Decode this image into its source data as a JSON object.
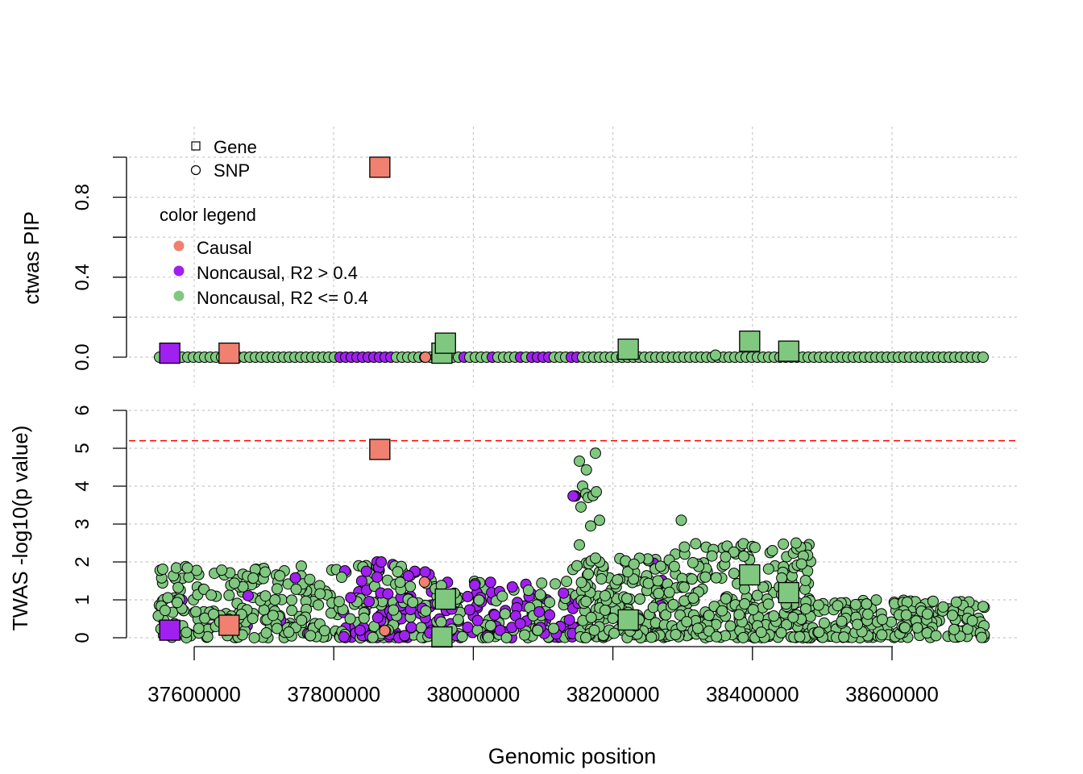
{
  "chart_data": [
    {
      "type": "scatter",
      "panel": "top",
      "ylabel": "ctwas PIP",
      "ylim": [
        0,
        1
      ],
      "yticks": [
        0.0,
        0.4,
        0.8
      ],
      "ytick_labels": [
        "0.0",
        "0.4",
        "0.8"
      ],
      "xlim": [
        37550000,
        38730000
      ],
      "grid": true,
      "shape_legend": {
        "gene": "Gene",
        "snp": "SNP"
      },
      "color_legend": {
        "title": "color legend",
        "items": [
          {
            "label": "Causal",
            "color": "#F08070"
          },
          {
            "label": "Noncausal, R2 > 0.4",
            "color": "#A020F0"
          },
          {
            "label": "Noncausal, R2 <= 0.4",
            "color": "#80C880"
          }
        ]
      },
      "genes": [
        {
          "x": 37866000,
          "y": 0.95,
          "class": "causal"
        },
        {
          "x": 37565000,
          "y": 0.02,
          "class": "high"
        },
        {
          "x": 37650000,
          "y": 0.02,
          "class": "causal"
        },
        {
          "x": 37955000,
          "y": 0.02,
          "class": "low"
        },
        {
          "x": 37960000,
          "y": 0.07,
          "class": "low"
        },
        {
          "x": 38222000,
          "y": 0.04,
          "class": "low"
        },
        {
          "x": 38396000,
          "y": 0.08,
          "class": "low"
        },
        {
          "x": 38452000,
          "y": 0.03,
          "class": "low"
        }
      ]
    },
    {
      "type": "scatter",
      "panel": "bottom",
      "ylabel": "TWAS -log10(p value)",
      "xlabel": "Genomic position",
      "ylim": [
        0,
        6
      ],
      "yticks": [
        0,
        1,
        2,
        3,
        4,
        5,
        6
      ],
      "ytick_labels": [
        "0",
        "1",
        "2",
        "3",
        "4",
        "5",
        "6"
      ],
      "xticks": [
        37600000,
        37800000,
        38000000,
        38200000,
        38400000,
        38600000
      ],
      "xtick_labels": [
        "37600000",
        "37800000",
        "38000000",
        "38200000",
        "38400000",
        "38600000"
      ],
      "xlim": [
        37550000,
        38730000
      ],
      "threshold": 5.2,
      "threshold_color": "#FF0000",
      "grid": true,
      "genes": [
        {
          "x": 37866000,
          "y": 4.97,
          "class": "causal"
        },
        {
          "x": 37565000,
          "y": 0.2,
          "class": "high"
        },
        {
          "x": 37650000,
          "y": 0.33,
          "class": "causal"
        },
        {
          "x": 37955000,
          "y": 0.02,
          "class": "low"
        },
        {
          "x": 37960000,
          "y": 1.02,
          "class": "low"
        },
        {
          "x": 38222000,
          "y": 0.47,
          "class": "low"
        },
        {
          "x": 38396000,
          "y": 1.66,
          "class": "low"
        },
        {
          "x": 38452000,
          "y": 1.19,
          "class": "low"
        }
      ],
      "snp_highlights": [
        {
          "x": 37873000,
          "y": 0.19,
          "class": "causal"
        },
        {
          "x": 37930000,
          "y": 1.47,
          "class": "causal"
        },
        {
          "x": 38143000,
          "y": 3.74,
          "class": "high"
        },
        {
          "x": 38298000,
          "y": 3.1,
          "class": "low"
        },
        {
          "x": 38175000,
          "y": 4.87,
          "class": "low"
        },
        {
          "x": 38152000,
          "y": 4.66,
          "class": "low"
        },
        {
          "x": 38162000,
          "y": 4.43,
          "class": "low"
        },
        {
          "x": 37868000,
          "y": 2.0,
          "class": "high"
        }
      ]
    }
  ]
}
